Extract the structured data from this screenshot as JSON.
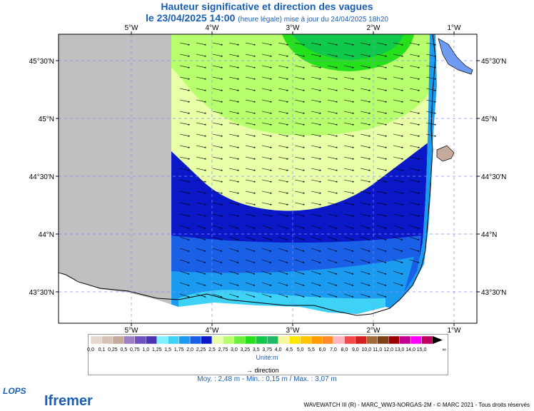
{
  "title_line1": "Hauteur significative et direction des vagues",
  "title_line2_main": "le 23/04/2025 14:00",
  "title_line2_sub": "(heure légale) mise à jour du 24/04/2025 18h20",
  "map": {
    "lon_ticks": [
      {
        "lon": -5,
        "label": "5°W"
      },
      {
        "lon": -4,
        "label": "4°W"
      },
      {
        "lon": -3,
        "label": "3°W"
      },
      {
        "lon": -2,
        "label": "2°W"
      },
      {
        "lon": -1,
        "label": "1°W"
      }
    ],
    "lat_ticks": [
      {
        "lat": 45.5,
        "label": "45°30'N"
      },
      {
        "lat": 45.0,
        "label": "45°N"
      },
      {
        "lat": 44.5,
        "label": "44°30'N"
      },
      {
        "lat": 44.0,
        "label": "44°N"
      },
      {
        "lat": 43.5,
        "label": "43°30'N"
      }
    ],
    "land_color": "#c0c0c0",
    "grid": true
  },
  "legend": {
    "classes": [
      {
        "label": "0,0",
        "color": "#e6d7cf"
      },
      {
        "label": "0,1",
        "color": "#d6c2b6"
      },
      {
        "label": "0,25",
        "color": "#c6aa9a"
      },
      {
        "label": "0,5",
        "color": "#9c7fc4"
      },
      {
        "label": "0,75",
        "color": "#6f52c0"
      },
      {
        "label": "1,0",
        "color": "#4a33b4"
      },
      {
        "label": "1,25",
        "color": "#80f2ff"
      },
      {
        "label": "1,5",
        "color": "#3ed3f6"
      },
      {
        "label": "1,75",
        "color": "#1a9bf0"
      },
      {
        "label": "2,0",
        "color": "#1a60e6"
      },
      {
        "label": "2,25",
        "color": "#0a18c8"
      },
      {
        "label": "2,5",
        "color": "#e8ffa8"
      },
      {
        "label": "2,75",
        "color": "#b8ff6e"
      },
      {
        "label": "3,0",
        "color": "#6df03c"
      },
      {
        "label": "3,25",
        "color": "#27e01c"
      },
      {
        "label": "3,5",
        "color": "#10c84a"
      },
      {
        "label": "3,75",
        "color": "#22b86a"
      },
      {
        "label": "4,0",
        "color": "#f6f6a0"
      },
      {
        "label": "4,5",
        "color": "#ffe600"
      },
      {
        "label": "5,0",
        "color": "#ffc400"
      },
      {
        "label": "5,5",
        "color": "#ff9c00"
      },
      {
        "label": "6,0",
        "color": "#ff8a2a"
      },
      {
        "label": "7,0",
        "color": "#ffb6c1"
      },
      {
        "label": "8,0",
        "color": "#f24a4a"
      },
      {
        "label": "9,0",
        "color": "#d02020"
      },
      {
        "label": "10,0",
        "color": "#a06a3a"
      },
      {
        "label": "11,0",
        "color": "#7a4216"
      },
      {
        "label": "12,0",
        "color": "#9c0000"
      },
      {
        "label": "13,0",
        "color": "#c00090"
      },
      {
        "label": "14,0",
        "color": "#ff00ff"
      },
      {
        "label": "15,0",
        "color": "#c00060"
      }
    ],
    "overflow_label": "∞",
    "unit": "Unité:m",
    "direction_label": "direction"
  },
  "stats": "Moy. : 2,48 m  -  Min. : 0,15 m / Max. : 3,07 m",
  "credit": "WAVEWATCH III (R) - MARC_WW3-NORGAS-2M - © MARC 2021 - Tous droits réservés",
  "logos": {
    "lops": "LOPS",
    "ifremer": "Ifremer"
  }
}
